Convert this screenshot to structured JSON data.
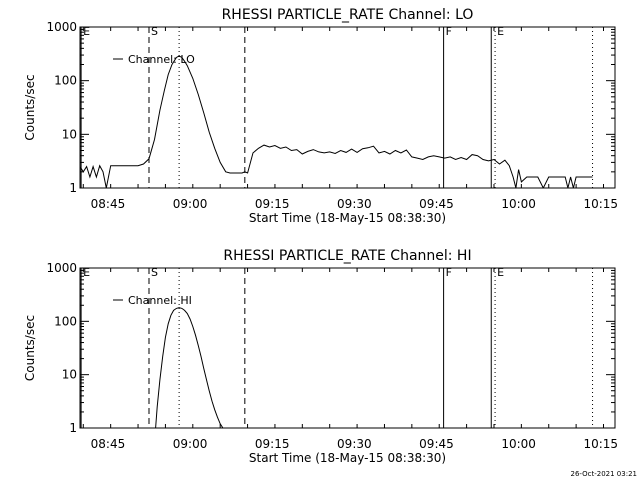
{
  "footer": {
    "timestamp": "26-Oct-2021 03:21"
  },
  "chart_data": [
    {
      "type": "line",
      "title": "RHESSI PARTICLE_RATE Channel: LO",
      "xlabel": "Start Time (18-May-15 08:38:30)",
      "ylabel": "Counts/sec",
      "y_scale": "log",
      "ylim": [
        1,
        1000
      ],
      "xlim": [
        1.4,
        99.1
      ],
      "x_ticks": [
        {
          "x": 6.5,
          "label": "08:45"
        },
        {
          "x": 21.5,
          "label": "09:00"
        },
        {
          "x": 36.5,
          "label": "09:15"
        },
        {
          "x": 51.5,
          "label": "09:30"
        },
        {
          "x": 66.5,
          "label": "09:45"
        },
        {
          "x": 81.5,
          "label": "10:00"
        },
        {
          "x": 96.5,
          "label": "10:15"
        }
      ],
      "y_ticks": [
        {
          "y": 1,
          "label": "1"
        },
        {
          "y": 10,
          "label": "10"
        },
        {
          "y": 100,
          "label": "100"
        },
        {
          "y": 1000,
          "label": "1000"
        }
      ],
      "legend": {
        "position": "top-left",
        "entries": [
          "Channel: LO"
        ]
      },
      "markers": [
        {
          "x": 1.6,
          "style": "solid",
          "label": "E"
        },
        {
          "x": 14.0,
          "style": "dashed",
          "label": "S"
        },
        {
          "x": 19.5,
          "style": "dotted",
          "label": ""
        },
        {
          "x": 31.5,
          "style": "dashed",
          "label": ""
        },
        {
          "x": 67.8,
          "style": "solid",
          "label": "F"
        },
        {
          "x": 76.5,
          "style": "solid",
          "label": ""
        },
        {
          "x": 77.2,
          "style": "dotted",
          "label": "E"
        },
        {
          "x": 95.0,
          "style": "dotted",
          "label": ""
        }
      ],
      "series": [
        {
          "name": "Channel: LO",
          "x": [
            1.4,
            2.0,
            2.6,
            3.2,
            3.8,
            4.4,
            5.0,
            5.6,
            6.2,
            7.0,
            8.0,
            9.0,
            10.0,
            11.0,
            12.0,
            13.0,
            14.0,
            15.0,
            16.0,
            16.8,
            17.5,
            18.2,
            19.0,
            19.5,
            20.0,
            20.5,
            21.0,
            22.0,
            23.0,
            24.0,
            25.0,
            26.0,
            27.0,
            28.0,
            28.8,
            29.5,
            30.5,
            31.0,
            31.5,
            32.0,
            33.0,
            34.0,
            35.0,
            36.0,
            37.0,
            38.0,
            39.0,
            40.0,
            41.0,
            42.0,
            43.0,
            44.0,
            45.0,
            46.0,
            47.0,
            48.0,
            49.0,
            50.0,
            51.0,
            52.0,
            53.0,
            54.0,
            55.0,
            56.0,
            57.0,
            58.0,
            59.0,
            60.0,
            61.0,
            62.0,
            63.0,
            64.0,
            65.0,
            66.0,
            67.0,
            68.0,
            69.0,
            70.0,
            71.0,
            72.0,
            73.0,
            74.0,
            75.0,
            76.0,
            77.0,
            78.0,
            79.0,
            79.8,
            80.5,
            81.0,
            81.5,
            82.0,
            83.0,
            84.0,
            85.0,
            86.0,
            87.0,
            88.0,
            89.0,
            90.0,
            90.5,
            91.0,
            91.5,
            92.0,
            93.0,
            94.0,
            95.0
          ],
          "values": [
            2.5,
            2.0,
            2.5,
            1.6,
            2.5,
            1.6,
            2.6,
            2.0,
            1.0,
            2.6,
            2.6,
            2.6,
            2.6,
            2.6,
            2.6,
            2.8,
            3.5,
            8.0,
            28.0,
            65.0,
            130.0,
            200.0,
            270.0,
            290.0,
            270.0,
            230.0,
            190.0,
            110.0,
            55.0,
            25.0,
            11.0,
            5.5,
            3.0,
            2.0,
            1.9,
            1.9,
            1.9,
            1.9,
            2.0,
            1.9,
            4.5,
            5.5,
            6.3,
            5.8,
            6.2,
            5.5,
            5.8,
            5.0,
            5.2,
            4.3,
            4.8,
            5.2,
            4.7,
            4.5,
            4.7,
            4.4,
            5.0,
            4.6,
            5.3,
            4.6,
            5.4,
            5.6,
            6.0,
            4.5,
            4.8,
            4.3,
            5.0,
            4.5,
            5.1,
            3.8,
            3.6,
            3.4,
            3.8,
            4.0,
            3.8,
            3.6,
            3.8,
            3.4,
            3.7,
            3.4,
            4.2,
            4.0,
            3.4,
            3.2,
            3.4,
            2.8,
            3.3,
            2.6,
            1.6,
            1.0,
            2.2,
            1.3,
            1.6,
            1.6,
            1.6,
            1.0,
            1.6,
            1.6,
            1.6,
            1.6,
            1.0,
            1.6,
            1.0,
            1.6,
            1.6,
            1.6,
            1.6
          ]
        }
      ]
    },
    {
      "type": "line",
      "title": "RHESSI PARTICLE_RATE Channel: HI",
      "xlabel": "Start Time (18-May-15 08:38:30)",
      "ylabel": "Counts/sec",
      "y_scale": "log",
      "ylim": [
        1,
        1000
      ],
      "xlim": [
        1.4,
        99.1
      ],
      "x_ticks": [
        {
          "x": 6.5,
          "label": "08:45"
        },
        {
          "x": 21.5,
          "label": "09:00"
        },
        {
          "x": 36.5,
          "label": "09:15"
        },
        {
          "x": 51.5,
          "label": "09:30"
        },
        {
          "x": 66.5,
          "label": "09:45"
        },
        {
          "x": 81.5,
          "label": "10:00"
        },
        {
          "x": 96.5,
          "label": "10:15"
        }
      ],
      "y_ticks": [
        {
          "y": 1,
          "label": "1"
        },
        {
          "y": 10,
          "label": "10"
        },
        {
          "y": 100,
          "label": "100"
        },
        {
          "y": 1000,
          "label": "1000"
        }
      ],
      "legend": {
        "position": "top-left",
        "entries": [
          "Channel: HI"
        ]
      },
      "markers": [
        {
          "x": 1.6,
          "style": "solid",
          "label": "E"
        },
        {
          "x": 14.0,
          "style": "dashed",
          "label": "S"
        },
        {
          "x": 19.5,
          "style": "dotted",
          "label": ""
        },
        {
          "x": 31.5,
          "style": "dashed",
          "label": ""
        },
        {
          "x": 67.8,
          "style": "solid",
          "label": "F"
        },
        {
          "x": 76.5,
          "style": "solid",
          "label": ""
        },
        {
          "x": 77.2,
          "style": "dotted",
          "label": "E"
        },
        {
          "x": 95.0,
          "style": "dotted",
          "label": ""
        }
      ],
      "series": [
        {
          "name": "Channel: HI",
          "x": [
            15.2,
            15.5,
            16.0,
            16.5,
            17.0,
            17.5,
            18.0,
            18.5,
            19.0,
            19.5,
            20.0,
            20.5,
            21.0,
            21.5,
            22.0,
            22.5,
            23.0,
            23.5,
            24.0,
            24.5,
            25.0,
            25.5,
            26.0,
            26.5,
            27.0,
            27.5
          ],
          "values": [
            1.0,
            2.5,
            8.0,
            22.0,
            50.0,
            90.0,
            130.0,
            160.0,
            175.0,
            180.0,
            175.0,
            160.0,
            140.0,
            110.0,
            80.0,
            55.0,
            35.0,
            22.0,
            13.0,
            8.0,
            5.0,
            3.2,
            2.2,
            1.6,
            1.2,
            1.0
          ]
        }
      ]
    }
  ]
}
